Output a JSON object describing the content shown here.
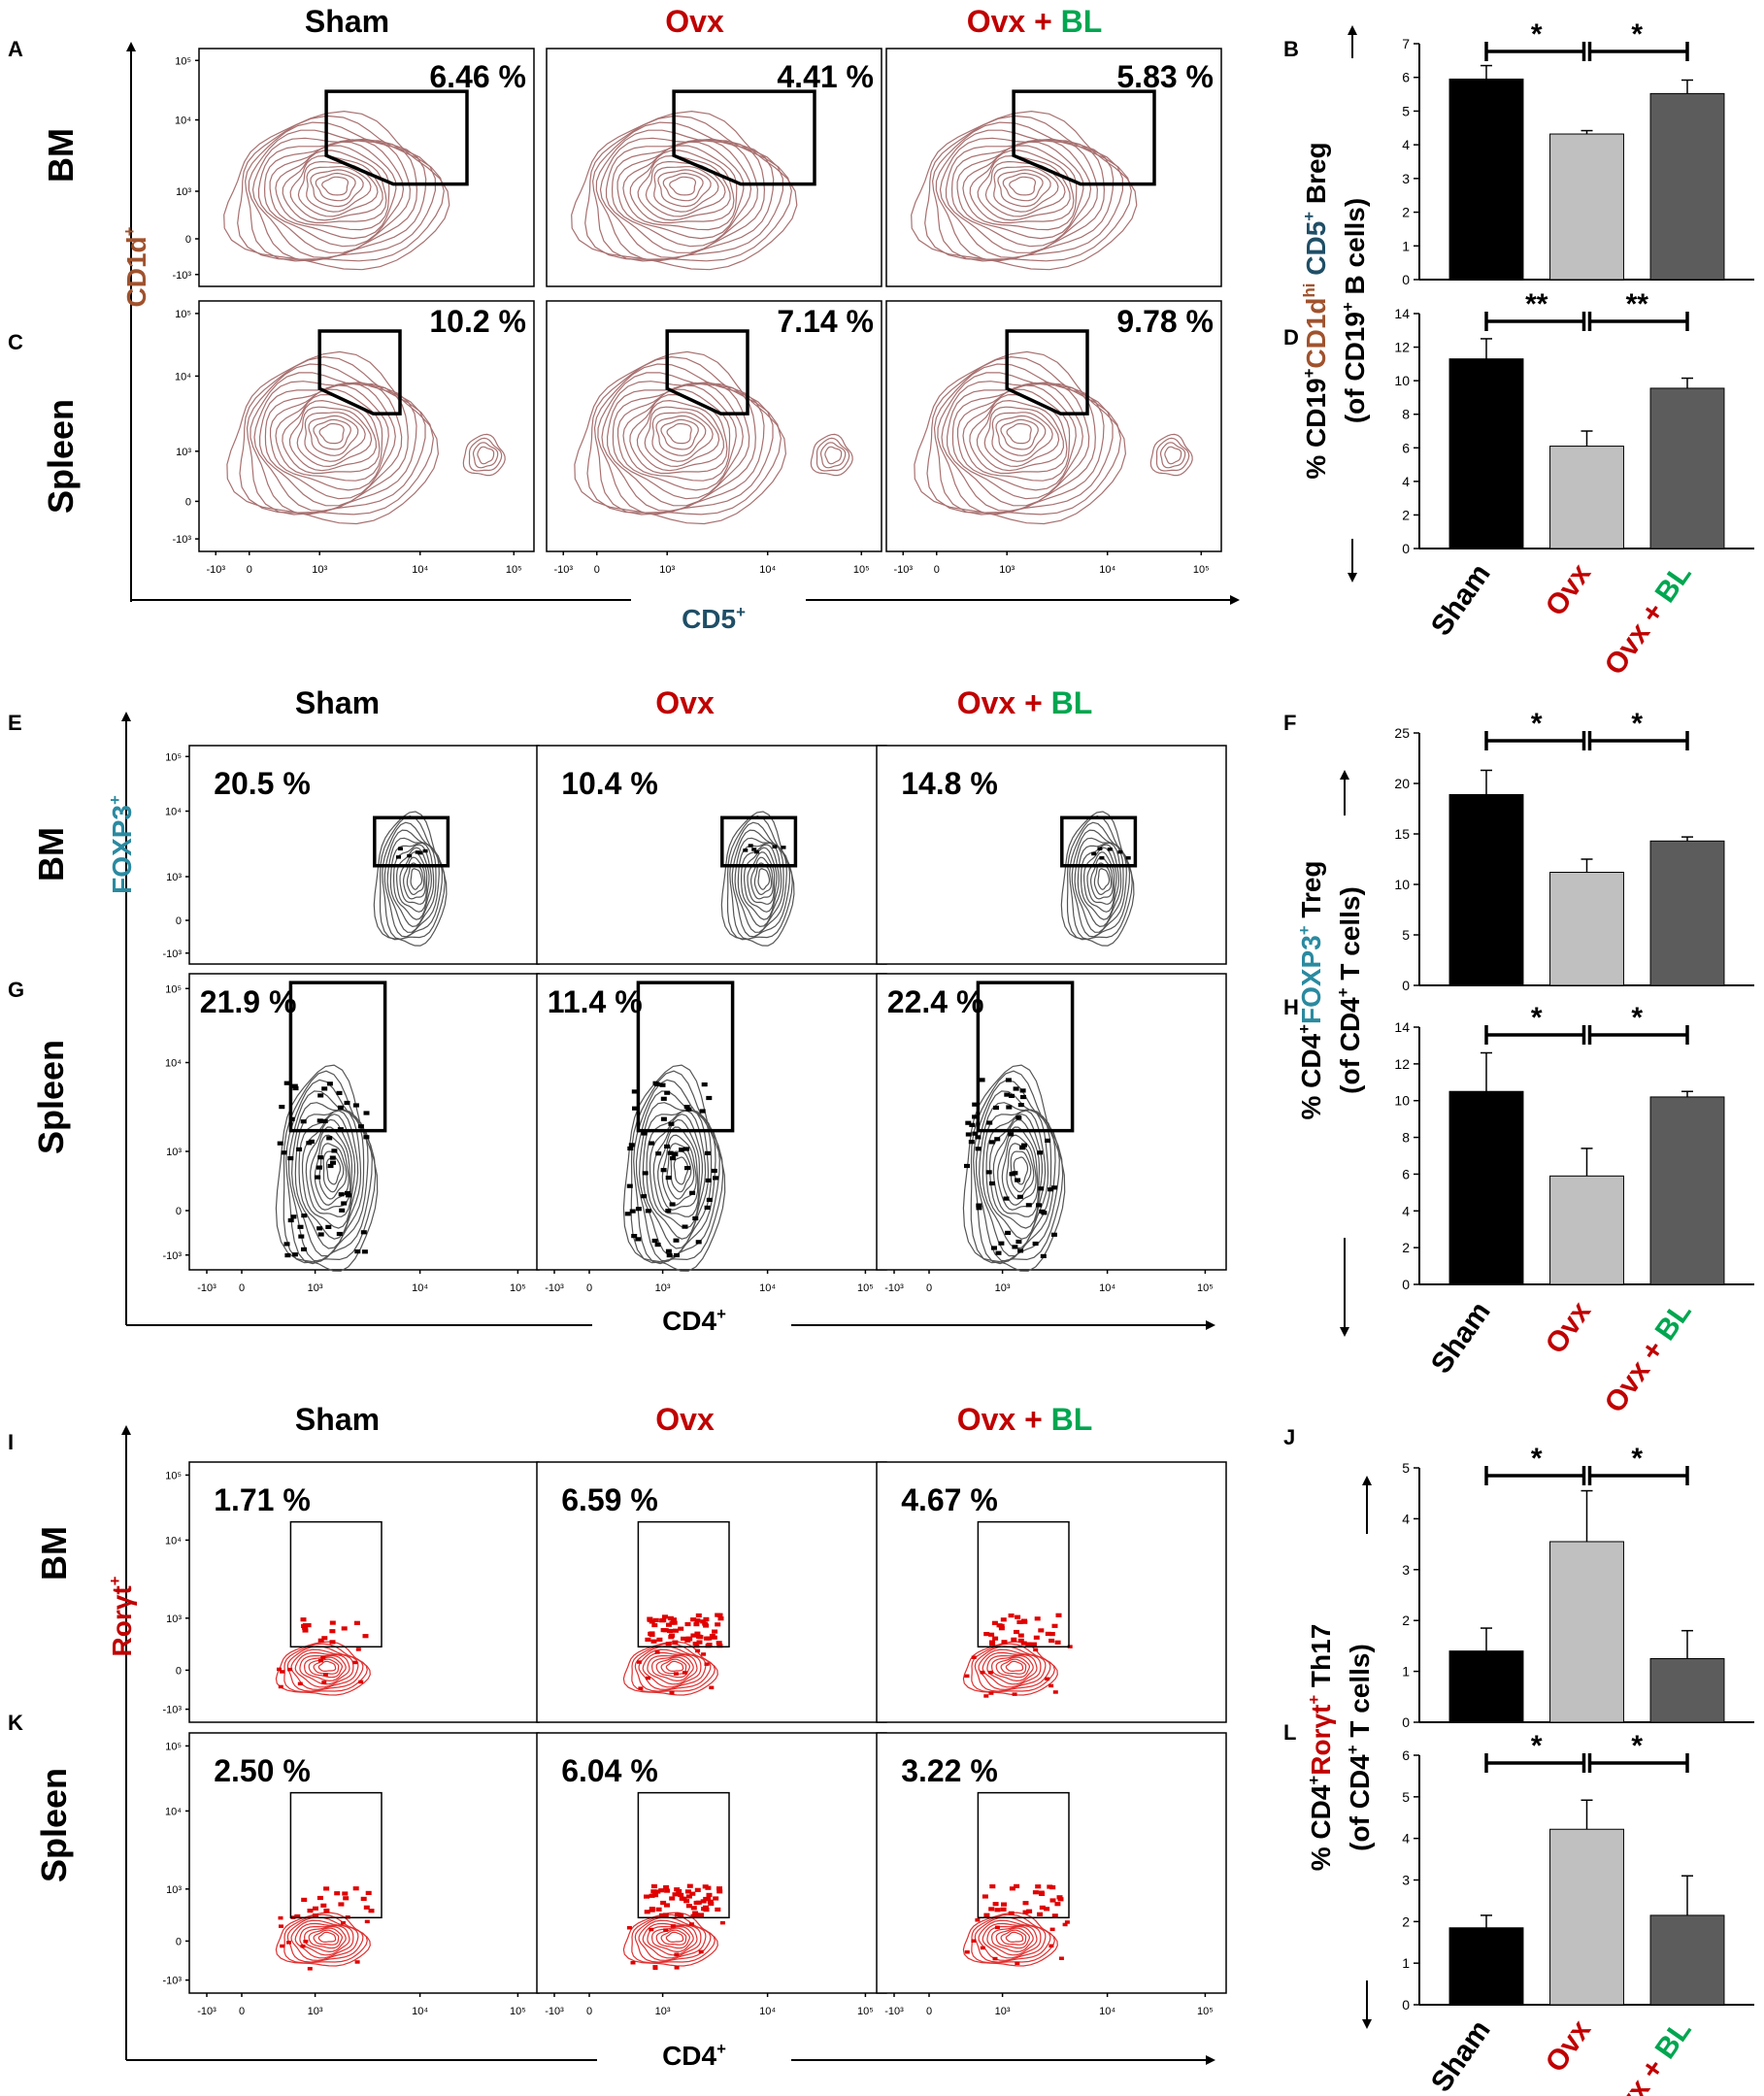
{
  "colors": {
    "black_bar": "#000000",
    "light_bar": "#c0c0c0",
    "dark_bar": "#5c5c5c",
    "red_label": "#c00000",
    "green_label": "#00a650",
    "breg_contour": "#a87070",
    "treg_contour": "#555555",
    "th17_contour": "#e03030",
    "cd1d_brown": "#a0522d",
    "cd5_teal": "#1f4e66",
    "foxp3_teal": "#2a8aa0"
  },
  "groups": {
    "sham": "Sham",
    "ovx": "Ovx",
    "plus": "+",
    "bl": "BL"
  },
  "tissues": {
    "bm": "BM",
    "spleen": "Spleen"
  },
  "axis_ticks": {
    "x": [
      "-10³",
      "0",
      "10³",
      "10⁴",
      "10⁵"
    ],
    "y": [
      "10⁵",
      "10⁴",
      "10³",
      "0",
      "-10³"
    ]
  },
  "section_breg": {
    "panel_letters": {
      "bm": "A",
      "spleen": "C"
    },
    "y_marker": "CD1d",
    "y_marker_sup": "+",
    "x_marker": "CD5",
    "x_marker_sup": "+",
    "percents": {
      "bm": [
        "6.46 %",
        "4.41 %",
        "5.83 %"
      ],
      "spleen": [
        "10.2 %",
        "7.14 %",
        "9.78 %"
      ]
    }
  },
  "section_treg": {
    "panel_letters": {
      "bm": "E",
      "spleen": "G"
    },
    "y_marker": "FOXP3",
    "y_marker_sup": "+",
    "x_marker": "CD4",
    "x_marker_sup": "+",
    "percents": {
      "bm": [
        "20.5 %",
        "10.4 %",
        "14.8 %"
      ],
      "spleen": [
        "21.9 %",
        "11.4 %",
        "22.4 %"
      ]
    }
  },
  "section_th17": {
    "panel_letters": {
      "bm": "I",
      "spleen": "K"
    },
    "y_marker": "Rorγt",
    "y_marker_sup": "+",
    "x_marker": "CD4",
    "x_marker_sup": "+",
    "percents": {
      "bm": [
        "1.71 %",
        "6.59 %",
        "4.67 %"
      ],
      "spleen": [
        "2.50 %",
        "6.04 %",
        "3.22 %"
      ]
    }
  },
  "chart_data": [
    {
      "panel": "B",
      "type": "bar",
      "categories": [
        "Sham",
        "Ovx",
        "Ovx + BL"
      ],
      "values": [
        5.95,
        4.32,
        5.52
      ],
      "errors": [
        0.4,
        0.1,
        0.4
      ],
      "ylim": [
        0,
        7
      ],
      "yticks": [
        "0",
        "1",
        "2",
        "3",
        "4",
        "5",
        "6",
        "7"
      ],
      "significance": [
        "*",
        "*"
      ]
    },
    {
      "panel": "D",
      "type": "bar",
      "categories": [
        "Sham",
        "Ovx",
        "Ovx + BL"
      ],
      "values": [
        11.3,
        6.1,
        9.55
      ],
      "errors": [
        1.2,
        0.9,
        0.6
      ],
      "ylim": [
        0,
        14
      ],
      "yticks": [
        "0",
        "2",
        "4",
        "6",
        "8",
        "10",
        "12",
        "14"
      ],
      "significance": [
        "**",
        "**"
      ]
    },
    {
      "panel": "F",
      "type": "bar",
      "categories": [
        "Sham",
        "Ovx",
        "Ovx + BL"
      ],
      "values": [
        18.9,
        11.2,
        14.3
      ],
      "errors": [
        2.4,
        1.3,
        0.4
      ],
      "ylim": [
        0,
        25
      ],
      "yticks": [
        "0",
        "5",
        "10",
        "15",
        "20",
        "25"
      ],
      "significance": [
        "*",
        "*"
      ]
    },
    {
      "panel": "H",
      "type": "bar",
      "categories": [
        "Sham",
        "Ovx",
        "Ovx + BL"
      ],
      "values": [
        10.5,
        5.9,
        10.2
      ],
      "errors": [
        2.1,
        1.5,
        0.3
      ],
      "ylim": [
        0,
        14
      ],
      "yticks": [
        "0",
        "2",
        "4",
        "6",
        "8",
        "10",
        "12",
        "14"
      ],
      "significance": [
        "*",
        "*"
      ]
    },
    {
      "panel": "J",
      "type": "bar",
      "categories": [
        "Sham",
        "Ovx",
        "Ovx + BL"
      ],
      "values": [
        1.4,
        3.55,
        1.25
      ],
      "errors": [
        0.45,
        1.0,
        0.55
      ],
      "ylim": [
        0,
        5
      ],
      "yticks": [
        "0",
        "1",
        "2",
        "3",
        "4",
        "5"
      ],
      "significance": [
        "*",
        "*"
      ]
    },
    {
      "panel": "L",
      "type": "bar",
      "categories": [
        "Sham",
        "Ovx",
        "Ovx + BL"
      ],
      "values": [
        1.85,
        4.22,
        2.15
      ],
      "errors": [
        0.3,
        0.7,
        0.95
      ],
      "ylim": [
        0,
        6
      ],
      "yticks": [
        "0",
        "1",
        "2",
        "3",
        "4",
        "5",
        "6"
      ],
      "significance": [
        "*",
        "*"
      ]
    }
  ],
  "bar_ylabels": {
    "breg_line1": [
      "% CD19",
      "+",
      "CD1d",
      "hi",
      " CD5",
      "+",
      " Breg"
    ],
    "breg_line2": [
      "(of CD19",
      "+",
      " B cells)"
    ],
    "treg_line1": [
      "% CD4",
      "+",
      "FOXP3",
      "+",
      " Treg"
    ],
    "treg_line2": [
      "(of CD4",
      "+",
      " T cells)"
    ],
    "th17_line1": [
      "% CD4",
      "+",
      "Rorγt",
      "+",
      " Th17"
    ],
    "th17_line2": [
      "(of CD4",
      "+",
      " T cells)"
    ]
  }
}
